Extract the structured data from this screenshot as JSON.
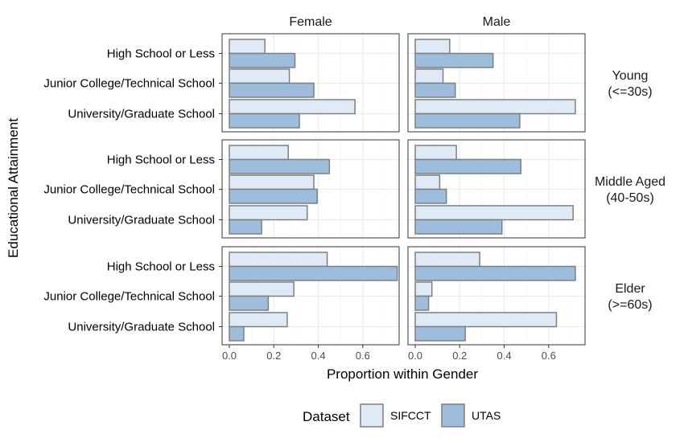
{
  "chart_data": {
    "type": "bar",
    "orientation": "horizontal",
    "xlabel": "Proportion within Gender",
    "ylabel": "Educational Attainment",
    "xlim": [
      0,
      0.76
    ],
    "x_ticks": [
      "0.0",
      "0.2",
      "0.4",
      "0.6"
    ],
    "grid": true,
    "legend_position": "bottom",
    "legend_title": "Dataset",
    "categories": [
      "High School or Less",
      "Junior College/Technical School",
      "University/Graduate School"
    ],
    "column_facets": [
      "Female",
      "Male"
    ],
    "row_facets": [
      {
        "id": "young",
        "line1": "Young",
        "line2": "(<=30s)"
      },
      {
        "id": "middle",
        "line1": "Middle Aged",
        "line2": "(40-50s)"
      },
      {
        "id": "elder",
        "line1": "Elder",
        "line2": "(>=60s)"
      }
    ],
    "series": [
      {
        "name": "SIFCCT",
        "color": "#deebf7",
        "values": {
          "young": {
            "Female": [
              0.16,
              0.27,
              0.565
            ],
            "Male": [
              0.155,
              0.125,
              0.72
            ]
          },
          "middle": {
            "Female": [
              0.265,
              0.38,
              0.35
            ],
            "Male": [
              0.185,
              0.11,
              0.71
            ]
          },
          "elder": {
            "Female": [
              0.44,
              0.29,
              0.26
            ],
            "Male": [
              0.29,
              0.075,
              0.635
            ]
          }
        }
      },
      {
        "name": "UTAS",
        "color": "#9ebcdb",
        "values": {
          "young": {
            "Female": [
              0.295,
              0.38,
              0.315
            ],
            "Male": [
              0.35,
              0.18,
              0.47
            ]
          },
          "middle": {
            "Female": [
              0.45,
              0.395,
              0.145
            ],
            "Male": [
              0.475,
              0.14,
              0.39
            ]
          },
          "elder": {
            "Female": [
              0.755,
              0.175,
              0.065
            ],
            "Male": [
              0.72,
              0.06,
              0.225
            ]
          }
        }
      }
    ]
  }
}
